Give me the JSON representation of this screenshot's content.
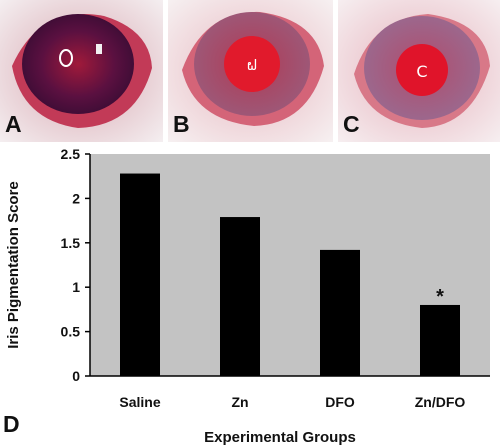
{
  "panels": [
    {
      "letter": "A"
    },
    {
      "letter": "B"
    },
    {
      "letter": "C"
    }
  ],
  "chart_data": {
    "type": "bar",
    "panel_letter": "D",
    "categories": [
      "Saline",
      "Zn",
      "DFO",
      "Zn/DFO"
    ],
    "values": [
      2.28,
      1.79,
      1.42,
      0.8
    ],
    "annotations": [
      "",
      "",
      "",
      "*"
    ],
    "xlabel": "Experimental Groups",
    "ylabel": "Iris Pigmentation Score",
    "ylim": [
      0,
      2.5
    ],
    "yticks": [
      "0",
      "0.5",
      "1",
      "1.5",
      "2",
      "2.5"
    ],
    "grid": false,
    "legend": "none",
    "colors": {
      "bar": "#000000",
      "plot_background": "#c3c3c3"
    }
  }
}
